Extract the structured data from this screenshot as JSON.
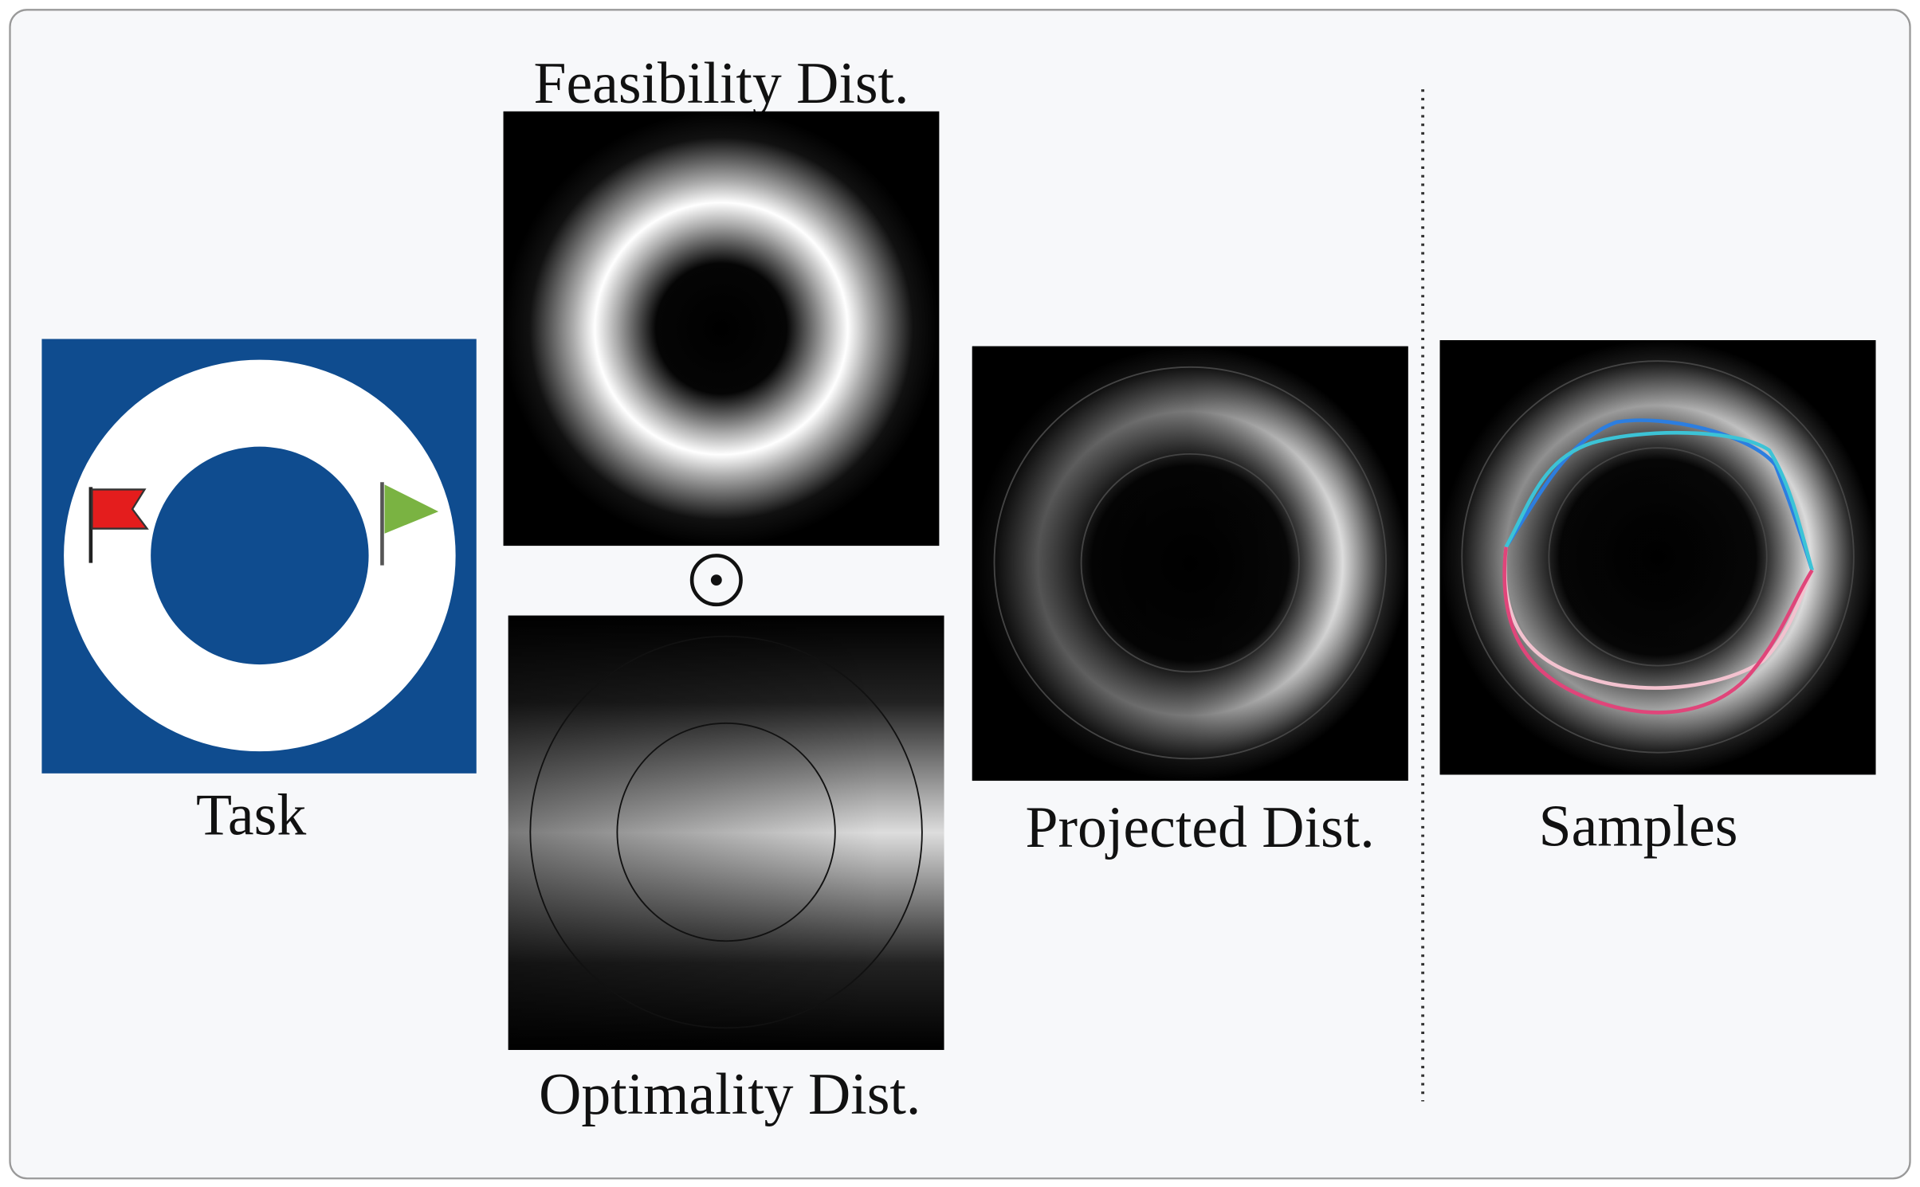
{
  "panels": {
    "feasibility": {
      "label": "Feasibility Dist."
    },
    "task": {
      "label": "Task"
    },
    "optimality": {
      "label": "Optimality Dist."
    },
    "projected": {
      "label": "Projected Dist."
    },
    "samples": {
      "label": "Samples"
    }
  }
}
